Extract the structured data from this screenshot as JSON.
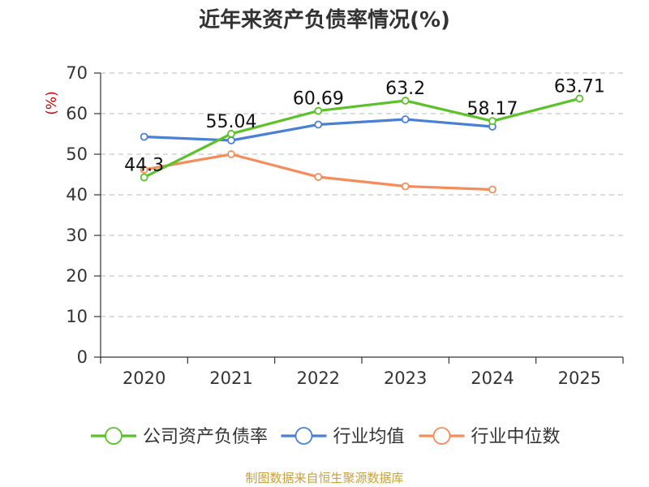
{
  "chart_data": {
    "type": "line",
    "title": "近年来资产负债率情况(%)",
    "ylabel": "(%)",
    "xlabel": "",
    "categories": [
      "2020",
      "2021",
      "2022",
      "2023",
      "2024",
      "2025"
    ],
    "ylim": [
      0,
      70
    ],
    "yticks": [
      0,
      10,
      20,
      30,
      40,
      50,
      60,
      70
    ],
    "grid": true,
    "legend_position": "bottom",
    "series": [
      {
        "name": "公司资产负债率",
        "color": "#5bc22a",
        "values": [
          44.3,
          55.04,
          60.69,
          63.2,
          58.17,
          63.71
        ],
        "labels": [
          "44.3",
          "55.04",
          "60.69",
          "63.2",
          "58.17",
          "63.71"
        ]
      },
      {
        "name": "行业均值",
        "color": "#4a7fd6",
        "values": [
          54.3,
          53.4,
          57.3,
          58.6,
          56.8,
          null
        ]
      },
      {
        "name": "行业中位数",
        "color": "#f58c5a",
        "values": [
          46.2,
          50.0,
          44.4,
          42.1,
          41.3,
          null
        ]
      }
    ],
    "source": "制图数据来自恒生聚源数据库"
  }
}
